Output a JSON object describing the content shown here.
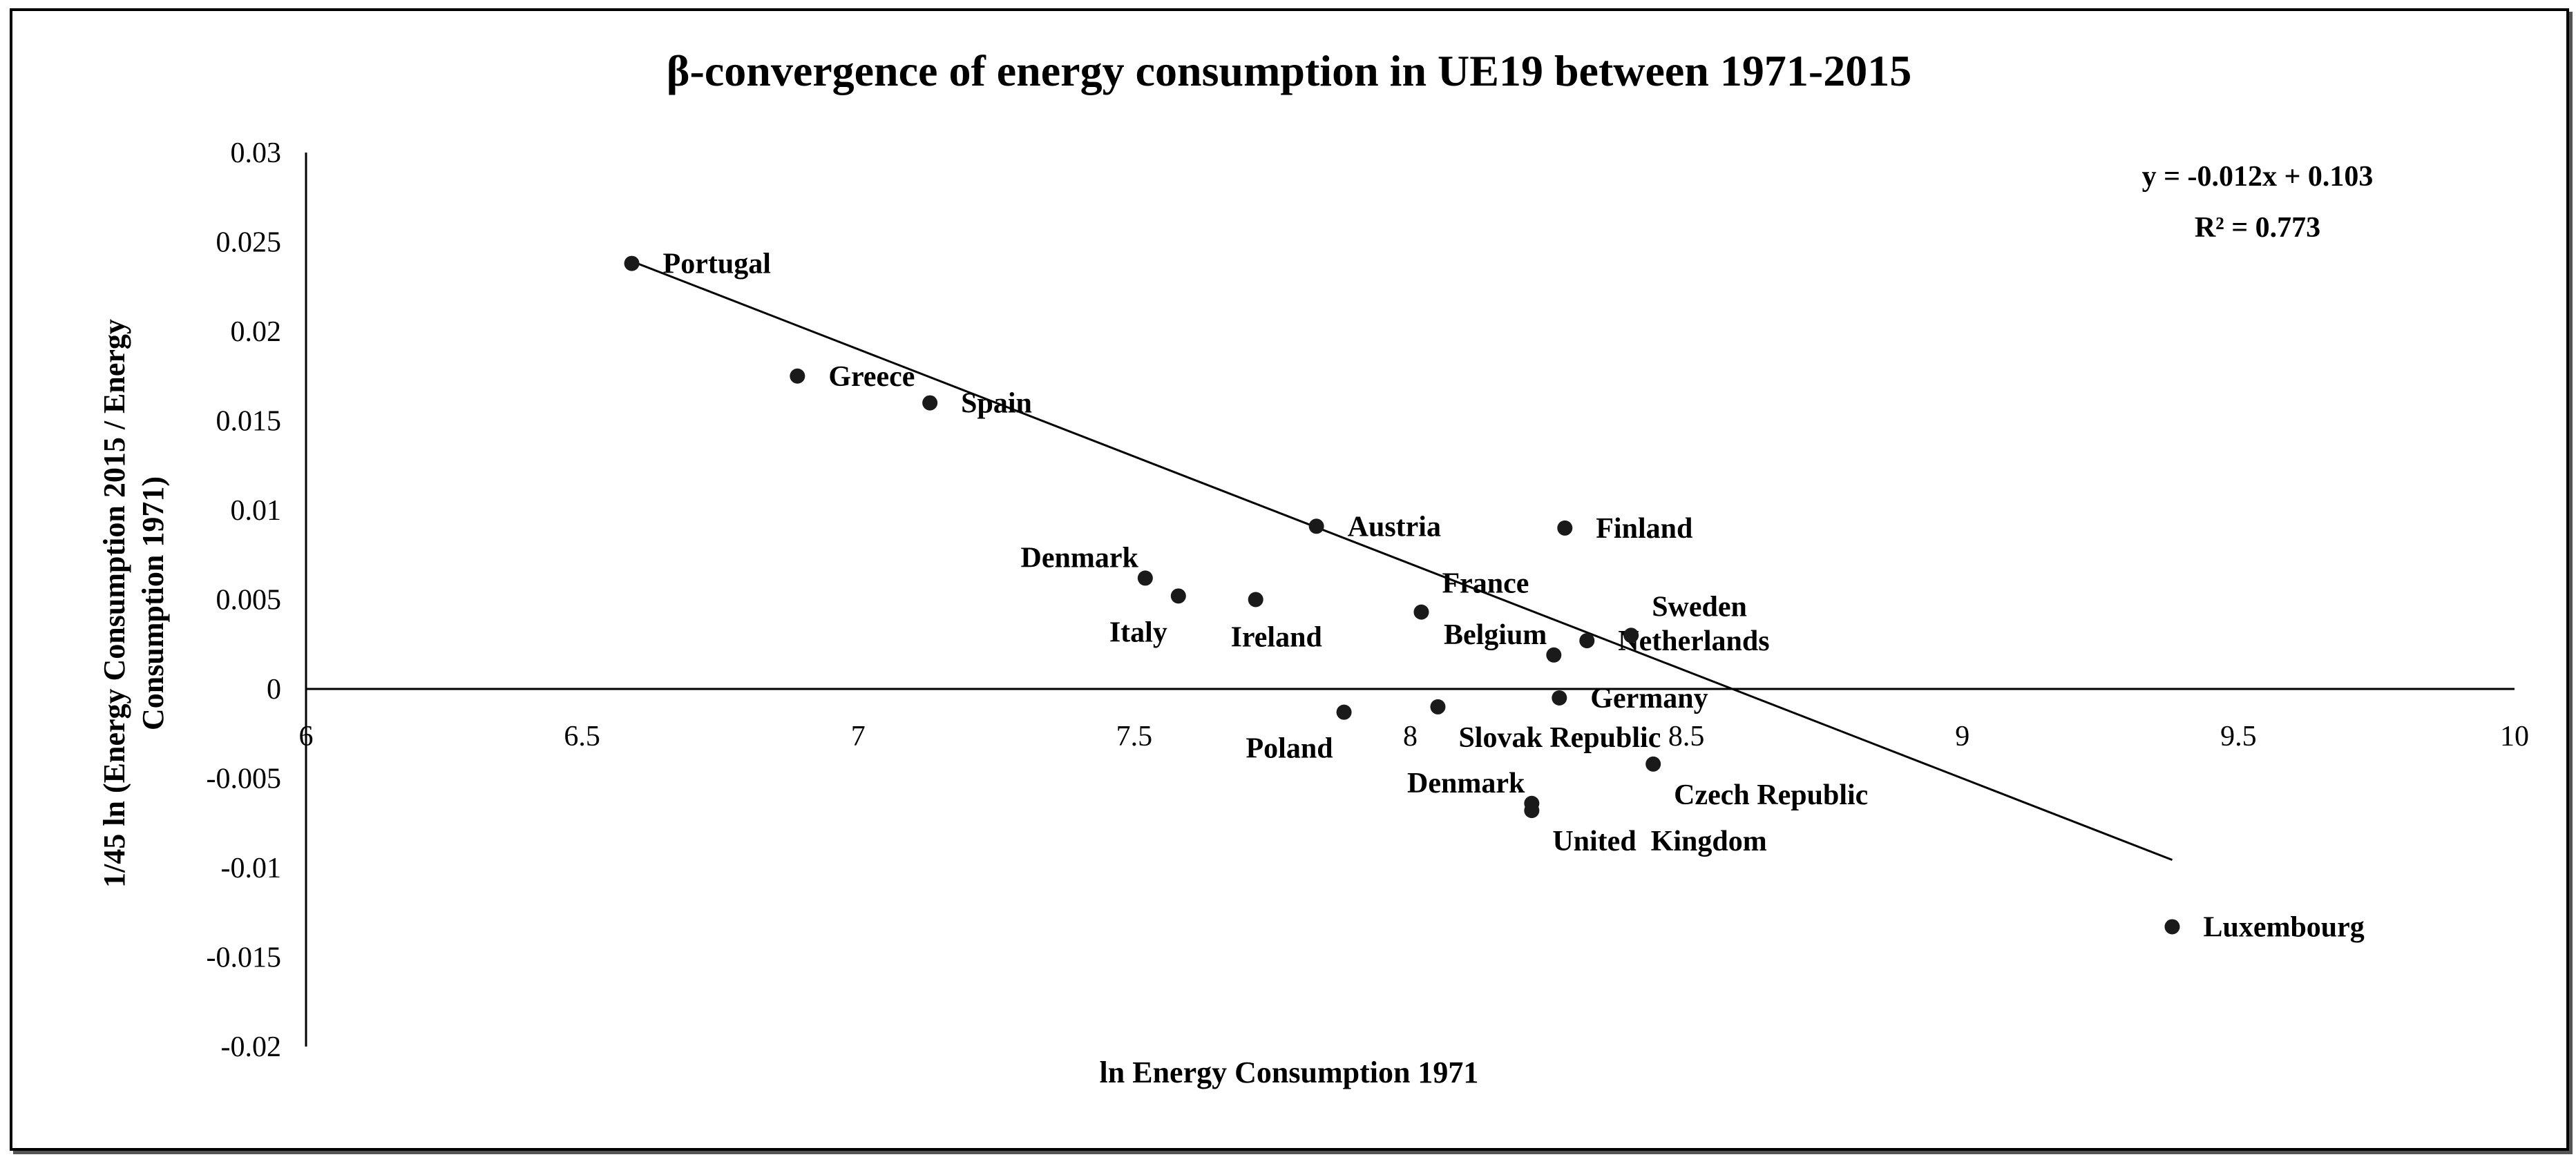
{
  "chart_data": {
    "type": "scatter",
    "title": "β-convergence of energy consumption in UE19 between 1971-2015",
    "xlabel": "ln Energy Consumption 1971",
    "ylabel_lines": [
      "1/45 ln (Energy Consumption 2015 / Energy",
      "Consumption 1971)"
    ],
    "xlim": [
      6,
      10
    ],
    "ylim": [
      -0.02,
      0.03
    ],
    "x_ticks": [
      {
        "value": 6,
        "label": "6"
      },
      {
        "value": 6.5,
        "label": "6.5"
      },
      {
        "value": 7,
        "label": "7"
      },
      {
        "value": 7.5,
        "label": "7.5"
      },
      {
        "value": 8,
        "label": "8"
      },
      {
        "value": 8.5,
        "label": "8.5"
      },
      {
        "value": 9,
        "label": "9"
      },
      {
        "value": 9.5,
        "label": "9.5"
      },
      {
        "value": 10,
        "label": "10"
      }
    ],
    "y_ticks": [
      {
        "value": 0.03,
        "label": "0.03"
      },
      {
        "value": 0.025,
        "label": "0.025"
      },
      {
        "value": 0.02,
        "label": "0.02"
      },
      {
        "value": 0.015,
        "label": "0.015"
      },
      {
        "value": 0.01,
        "label": "0.01"
      },
      {
        "value": 0.005,
        "label": "0.005"
      },
      {
        "value": 0,
        "label": "0"
      },
      {
        "value": -0.005,
        "label": "-0.005"
      },
      {
        "value": -0.01,
        "label": "-0.01"
      },
      {
        "value": -0.015,
        "label": "-0.015"
      },
      {
        "value": -0.02,
        "label": "-0.02"
      }
    ],
    "points": [
      {
        "label": "Portugal",
        "x": 6.59,
        "y": 0.0238,
        "anchor": "right"
      },
      {
        "label": "Greece",
        "x": 6.89,
        "y": 0.0175,
        "anchor": "right"
      },
      {
        "label": "Spain",
        "x": 7.13,
        "y": 0.016,
        "anchor": "right"
      },
      {
        "label": "Austria",
        "x": 7.83,
        "y": 0.0091,
        "anchor": "right"
      },
      {
        "label": "Finland",
        "x": 8.28,
        "y": 0.009,
        "anchor": "right"
      },
      {
        "label": "Denmark",
        "x": 7.52,
        "y": 0.0062,
        "anchor": "upper-left"
      },
      {
        "label": "Italy",
        "x": 7.58,
        "y": 0.0052,
        "anchor": "lower-left"
      },
      {
        "label": "Ireland",
        "x": 7.72,
        "y": 0.005,
        "anchor": "below"
      },
      {
        "label": "France",
        "x": 8.02,
        "y": 0.0043,
        "anchor": "upper-right"
      },
      {
        "label": "Belgium",
        "x": 8.26,
        "y": 0.0019,
        "anchor": "upper-left"
      },
      {
        "label": "Netherlands",
        "x": 8.32,
        "y": 0.0027,
        "anchor": "right"
      },
      {
        "label": "Sweden",
        "x": 8.4,
        "y": 0.003,
        "anchor": "upper-right"
      },
      {
        "label": "Germany",
        "x": 8.27,
        "y": -0.0005,
        "anchor": "right"
      },
      {
        "label": "Slovak Republic",
        "x": 8.05,
        "y": -0.001,
        "anchor": "lower-right"
      },
      {
        "label": "Poland",
        "x": 7.88,
        "y": -0.0013,
        "anchor": "lower-left"
      },
      {
        "label": "Czech Republic",
        "x": 8.44,
        "y": -0.0042,
        "anchor": "lower-right"
      },
      {
        "label": "Denmark",
        "x": 8.22,
        "y": -0.0064,
        "anchor": "upper-left"
      },
      {
        "label": "United  Kingdom",
        "x": 8.22,
        "y": -0.0068,
        "anchor": "lower-right"
      },
      {
        "label": "Luxembourg",
        "x": 9.38,
        "y": -0.0133,
        "anchor": "right"
      }
    ],
    "trendline": {
      "slope": -0.012,
      "intercept": 0.103,
      "x_start": 6.59,
      "x_end": 9.38
    },
    "equation": "y = -0.012x + 0.103",
    "r_squared": "R² = 0.773"
  }
}
